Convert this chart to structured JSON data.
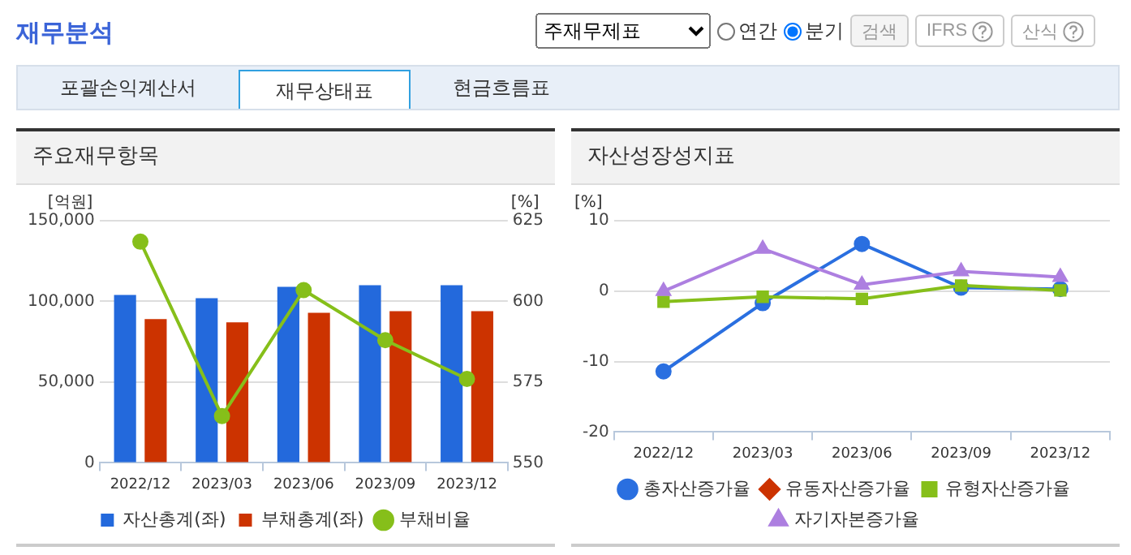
{
  "chart_data": [
    {
      "type": "other",
      "title": "재무분석",
      "annotations": [
        "주재무제표",
        "연간",
        "분기",
        "검색",
        "IFRS",
        "산식",
        "포괄손익계산서",
        "재무상태표",
        "현금흐름표"
      ]
    },
    {
      "type": "bar",
      "title": "주요재무항목",
      "ylabel": "[억원]",
      "y2label": "[%]",
      "categories": [
        "2022/12",
        "2023/03",
        "2023/06",
        "2023/09",
        "2023/12"
      ],
      "series": [
        {
          "name": "자산총계(좌)",
          "color": "#2369dc",
          "values": [
            104000,
            102000,
            109000,
            110000,
            110000
          ]
        },
        {
          "name": "부채총계(좌)",
          "color": "#cc3300",
          "values": [
            89000,
            87000,
            93000,
            94000,
            94000
          ]
        },
        {
          "name": "부채비율",
          "type": "line",
          "axis": "y2",
          "marker": "circle",
          "color": "#86bf1a",
          "values": [
            618.5,
            564.5,
            603.5,
            588,
            576
          ]
        }
      ],
      "ylim": [
        0,
        150000
      ],
      "yticks": [
        0,
        {
          "value": 50000,
          "label": "50,000"
        },
        {
          "value": 100000,
          "label": "100,000"
        },
        {
          "value": 150000,
          "label": "150,000"
        }
      ],
      "y2lim": [
        550,
        625
      ],
      "y2ticks": [
        550,
        575,
        600,
        625
      ],
      "grid": "y",
      "legend": "bottom"
    },
    {
      "type": "line",
      "title": "자산성장성지표",
      "ylabel": "[%]",
      "categories": [
        "2022/12",
        "2023/03",
        "2023/06",
        "2023/09",
        "2023/12"
      ],
      "series": [
        {
          "name": "총자산증가율",
          "marker": "circle",
          "color": "#2a6fe0",
          "values": [
            -11.4,
            -1.7,
            6.7,
            0.5,
            0.3
          ]
        },
        {
          "name": "유동자산증가율",
          "marker": "diamond",
          "color": "#cc3300",
          "values": [
            null,
            null,
            null,
            null,
            null
          ]
        },
        {
          "name": "유형자산증가율",
          "marker": "square",
          "color": "#86bf1a",
          "values": [
            -1.5,
            -0.8,
            -1.1,
            0.8,
            0.1
          ]
        },
        {
          "name": "자기자본증가율",
          "marker": "triangle",
          "color": "#ad7fe0",
          "values": [
            0,
            6,
            0.9,
            2.8,
            2
          ]
        }
      ],
      "ylim": [
        -20,
        10
      ],
      "yticks": [
        -20,
        -10,
        0,
        10
      ],
      "grid": "y",
      "legend": "bottom"
    }
  ]
}
